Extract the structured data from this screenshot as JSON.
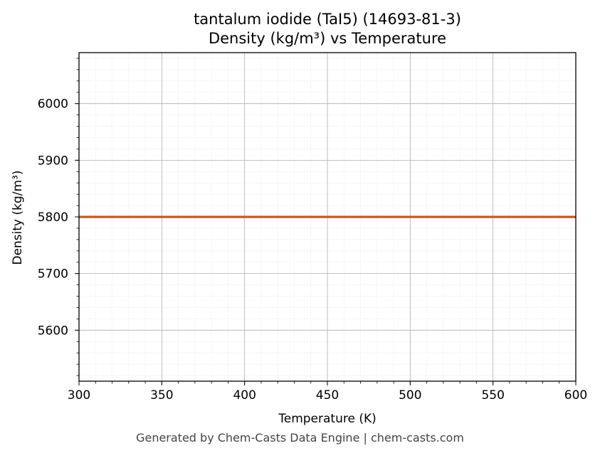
{
  "chart_data": {
    "type": "line",
    "title": "tantalum iodide (TaI5) (14693-81-3)",
    "subtitle": "Density (kg/m³) vs Temperature",
    "xlabel": "Temperature (K)",
    "ylabel": "Density (kg/m³)",
    "xlim": [
      300,
      600
    ],
    "ylim": [
      5510,
      6090
    ],
    "x_ticks": [
      300,
      350,
      400,
      450,
      500,
      550,
      600
    ],
    "y_ticks": [
      5600,
      5700,
      5800,
      5900,
      6000
    ],
    "grid": true,
    "series": [
      {
        "color": "#c4562a",
        "x": [
          300,
          350,
          400,
          450,
          500,
          550,
          600
        ],
        "y": [
          5800,
          5800,
          5800,
          5800,
          5800,
          5800,
          5800
        ]
      }
    ]
  },
  "footer": "Generated by Chem-Casts Data Engine | chem-casts.com"
}
